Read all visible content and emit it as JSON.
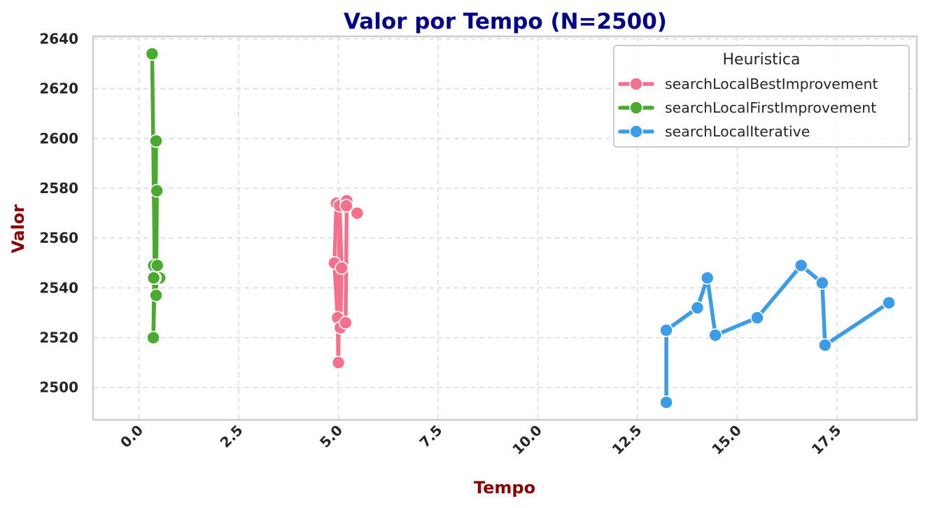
{
  "chart_data": {
    "type": "line",
    "title": "Valor por Tempo (N=2500)",
    "xlabel": "Tempo",
    "ylabel": "Valor",
    "xlim": [
      -1.15,
      19.5
    ],
    "ylim": [
      2487,
      2641
    ],
    "xticks": [
      "0.0",
      "2.5",
      "5.0",
      "7.5",
      "10.0",
      "12.5",
      "15.0",
      "17.5"
    ],
    "xtick_values": [
      0,
      2.5,
      5,
      7.5,
      10,
      12.5,
      15,
      17.5
    ],
    "yticks": [
      2500,
      2520,
      2540,
      2560,
      2580,
      2600,
      2620,
      2640
    ],
    "grid": true,
    "legend": {
      "title": "Heuristica",
      "placement": "top-right"
    },
    "colors": {
      "title": "#00008b",
      "axis_title": "#8b0000",
      "grid": "#dddddd",
      "spine": "#cccccc"
    },
    "series": [
      {
        "name": "searchLocalBestImprovement",
        "color": "#f5708a",
        "x": [
          4.95,
          4.9,
          4.98,
          5.0,
          5.03,
          5.08,
          5.05,
          5.18,
          5.21,
          5.2,
          5.47
        ],
        "y": [
          2574,
          2550,
          2528,
          2510,
          2573,
          2548,
          2524,
          2526,
          2575,
          2573,
          2570
        ]
      },
      {
        "name": "searchLocalFirstImprovement",
        "color": "#4aaa2f",
        "x": [
          0.33,
          0.4,
          0.43,
          0.36,
          0.45,
          0.43,
          0.37,
          0.46,
          0.52,
          0.4,
          0.37
        ],
        "y": [
          2634,
          2544,
          2599,
          2520,
          2579,
          2537,
          2549,
          2549,
          2544,
          2544,
          2544
        ]
      },
      {
        "name": "searchLocalIterative",
        "color": "#3b9de8",
        "x": [
          13.22,
          13.22,
          14.0,
          14.25,
          14.45,
          15.5,
          16.6,
          17.13,
          17.2,
          18.8
        ],
        "y": [
          2494,
          2523,
          2532,
          2544,
          2521,
          2528,
          2549,
          2542,
          2517,
          2534
        ]
      }
    ]
  }
}
